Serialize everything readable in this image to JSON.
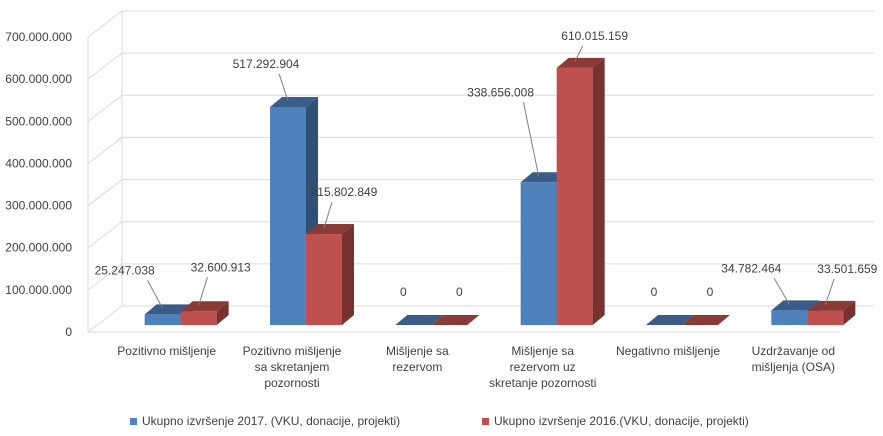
{
  "chart_data": {
    "type": "bar",
    "style": "3d-clustered-column",
    "categories": [
      [
        "Pozitivno mišljenje"
      ],
      [
        "Pozitivno mišljenje",
        "sa skretanjem",
        "pozornosti"
      ],
      [
        "Mišljenje sa",
        "rezervom"
      ],
      [
        "Mišljenje sa",
        "rezervom uz",
        "skretanje pozornosti"
      ],
      [
        "Negativno mišljenje"
      ],
      [
        "Uzdržavanje od",
        "mišljenja (OSA)"
      ]
    ],
    "series": [
      {
        "name": "Ukupno izvršenje 2017. (VKU, donacije, projekti)",
        "color": "#4f81bd",
        "values": [
          25247038,
          517292904,
          0,
          338656008,
          0,
          34782464
        ],
        "labels": [
          "25.247.038",
          "517.292.904",
          "0",
          "338.656.008",
          "0",
          "34.782.464"
        ]
      },
      {
        "name": "Ukupno izvršenje 2016.(VKU, donacije, projekti)",
        "color": "#c0504d",
        "values": [
          32600913,
          215802849,
          0,
          610015159,
          0,
          33501659
        ],
        "labels": [
          "32.600.913",
          "215.802.849",
          "0",
          "610.015.159",
          "0",
          "33.501.659"
        ]
      }
    ],
    "y_ticks": [
      "0",
      "100.000.000",
      "200.000.000",
      "300.000.000",
      "400.000.000",
      "500.000.000",
      "600.000.000",
      "700.000.000"
    ],
    "ylim": [
      0,
      700000000
    ],
    "grid": true,
    "legend_position": "bottom",
    "title": "",
    "xlabel": "",
    "ylabel": ""
  }
}
